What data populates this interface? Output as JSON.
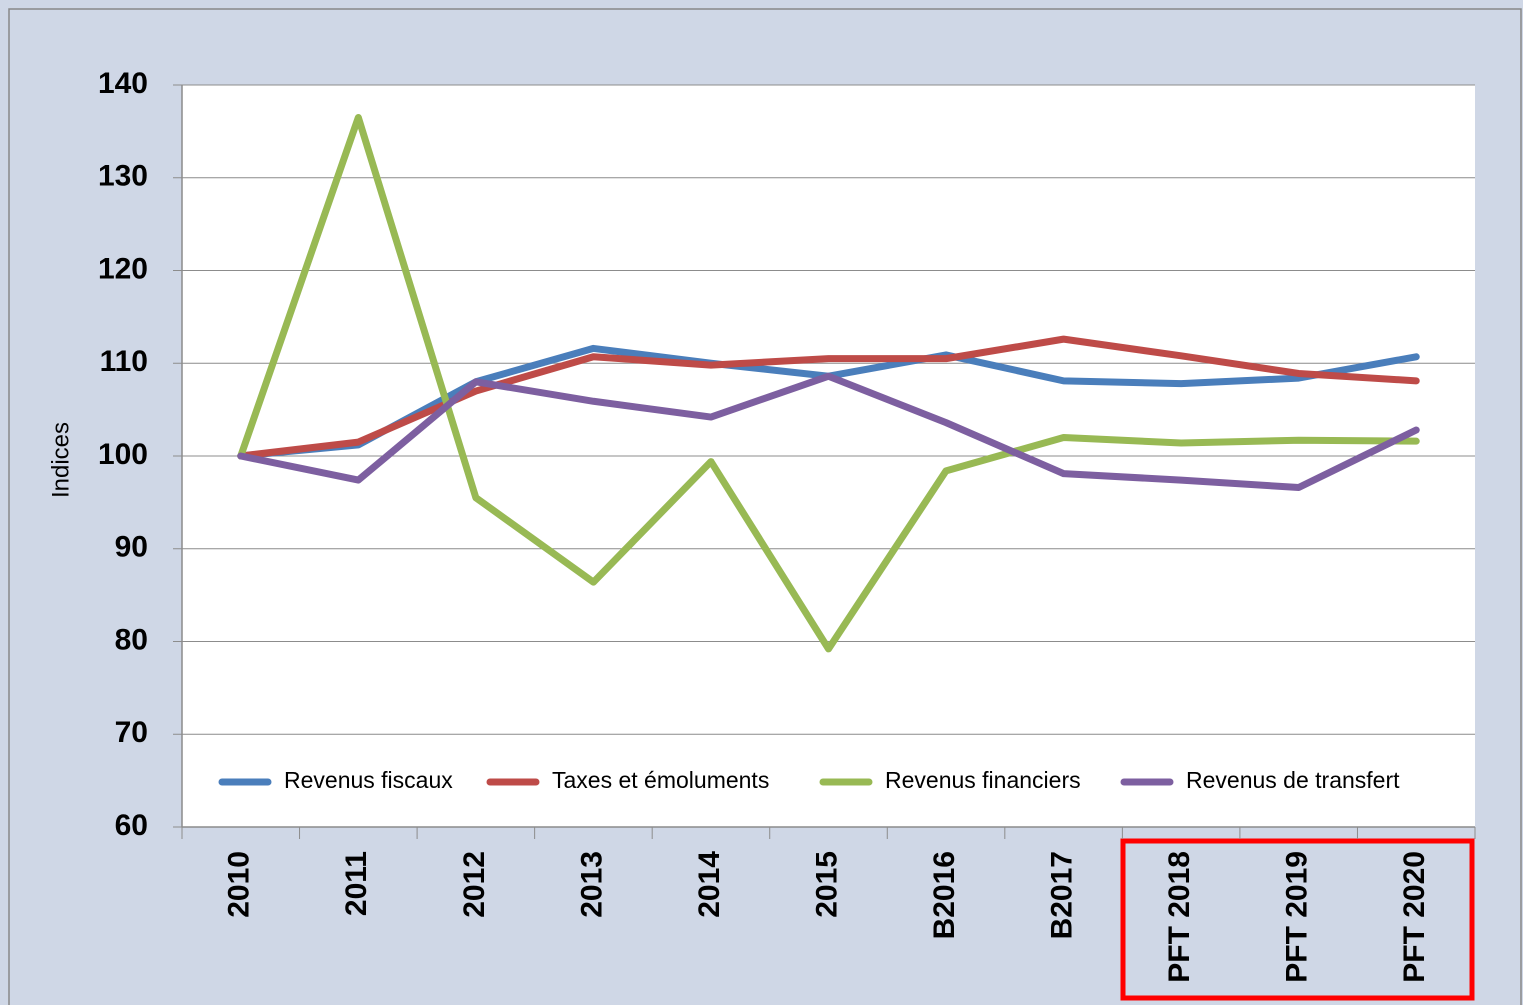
{
  "chart_data": {
    "type": "line",
    "y_label": "Indices",
    "categories": [
      "2010",
      "2011",
      "2012",
      "2013",
      "2014",
      "2015",
      "B2016",
      "B2017",
      "PFT 2018",
      "PFT 2019",
      "PFT 2020"
    ],
    "series": [
      {
        "name": "Revenus fiscaux",
        "color": "#4a7ebb",
        "values": [
          100,
          101.2,
          108,
          111.6,
          110,
          108.6,
          110.9,
          108.1,
          107.8,
          108.4,
          110.7
        ]
      },
      {
        "name": "Taxes et émoluments",
        "color": "#be4b48",
        "values": [
          100,
          101.5,
          107,
          110.7,
          109.8,
          110.5,
          110.5,
          112.6,
          110.8,
          108.9,
          108.1
        ]
      },
      {
        "name": "Revenus financiers",
        "color": "#98b954",
        "values": [
          100,
          136.5,
          95.5,
          86.4,
          99.4,
          79.2,
          98.4,
          102,
          101.4,
          101.7,
          101.6
        ]
      },
      {
        "name": "Revenus de transfert",
        "color": "#7d5fa0",
        "values": [
          100,
          97.4,
          108,
          105.9,
          104.2,
          108.6,
          103.6,
          98.1,
          97.4,
          96.6,
          102.8
        ]
      }
    ],
    "ylim": [
      60,
      140
    ],
    "yticks": [
      60,
      70,
      80,
      90,
      100,
      110,
      120,
      130,
      140
    ],
    "grid": true,
    "legend": "bottom"
  }
}
